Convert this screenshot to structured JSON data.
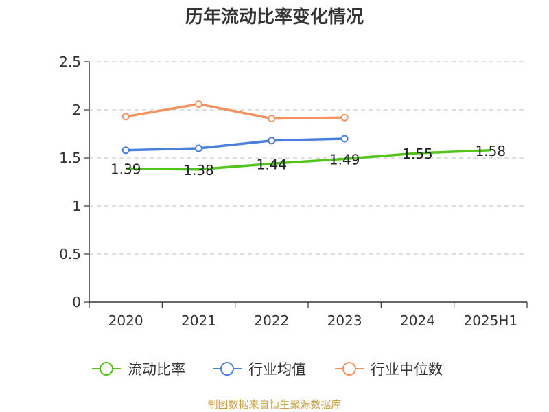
{
  "chart_data": {
    "type": "line",
    "title": "历年流动比率变化情况",
    "categories": [
      "2020",
      "2021",
      "2022",
      "2023",
      "2024",
      "2025H1"
    ],
    "ylim": [
      0,
      2.5
    ],
    "yticks": [
      "0",
      "0.5",
      "1",
      "1.5",
      "2",
      "2.5"
    ],
    "grid": true,
    "legend_position": "bottom",
    "series": [
      {
        "name": "流动比率",
        "color": "#52c41a",
        "values": [
          1.39,
          1.38,
          1.44,
          1.49,
          1.55,
          1.58
        ],
        "labels": [
          "1.39",
          "1.38",
          "1.44",
          "1.49",
          "1.55",
          "1.58"
        ]
      },
      {
        "name": "行业均值",
        "color": "#4a7fdc",
        "values": [
          1.58,
          1.6,
          1.68,
          1.7,
          null,
          null
        ]
      },
      {
        "name": "行业中位数",
        "color": "#f59260",
        "values": [
          1.93,
          2.06,
          1.91,
          1.92,
          null,
          null
        ]
      }
    ]
  },
  "source": "制图数据来自恒生聚源数据库"
}
